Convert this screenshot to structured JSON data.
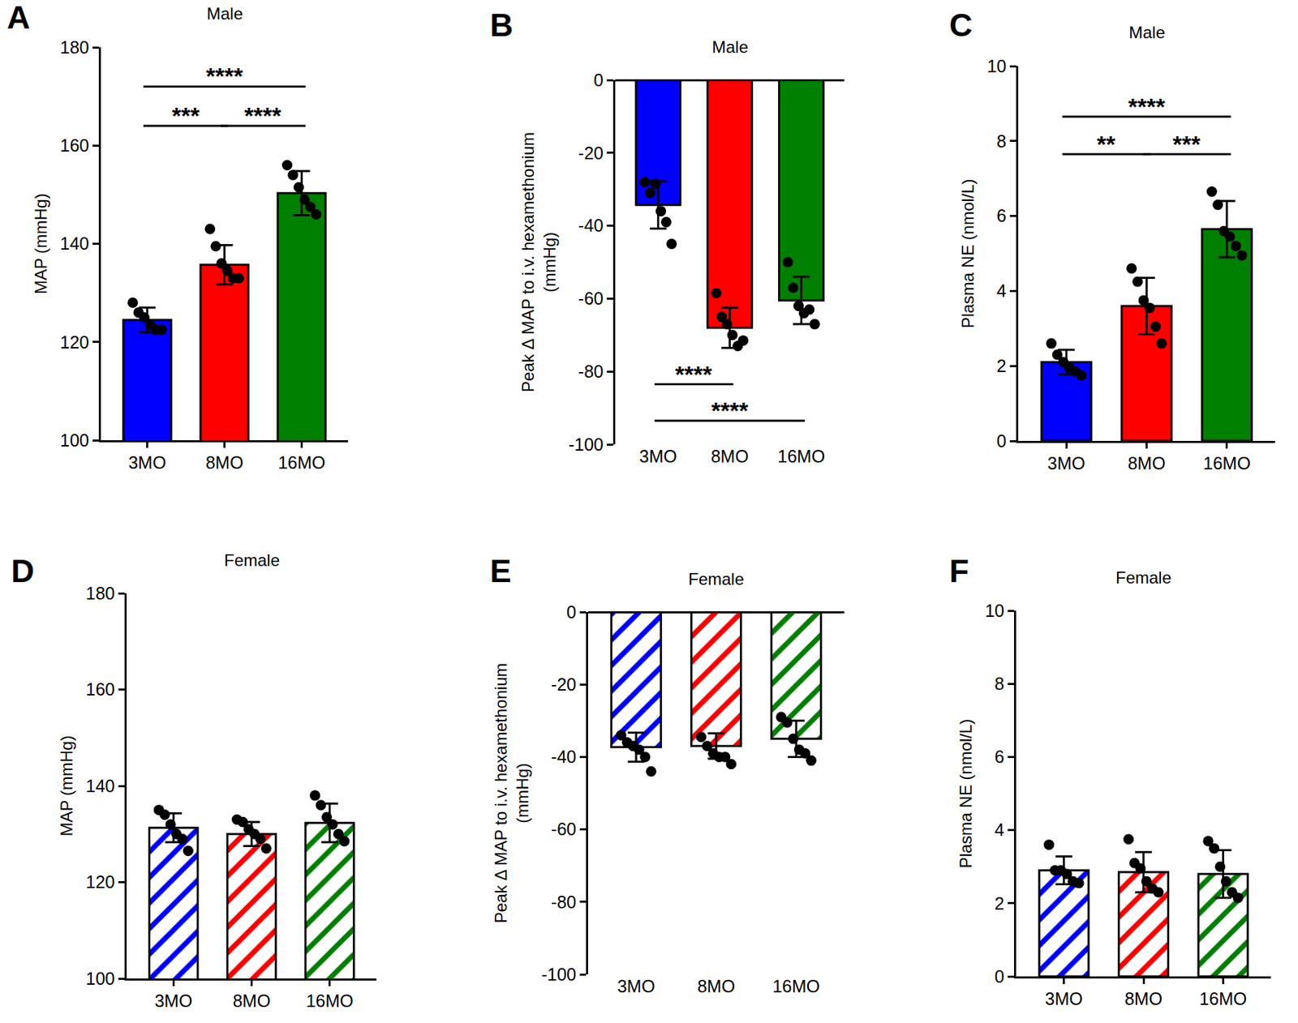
{
  "chart_data": [
    {
      "type": "bar",
      "panel_label": "A",
      "title": "Male",
      "ylabel": "MAP (mmHg)",
      "categories": [
        "3MO",
        "8MO",
        "16MO"
      ],
      "values": [
        124.5,
        135.7,
        150.3
      ],
      "error": [
        2.5,
        4.0,
        4.5
      ],
      "points": [
        [
          128,
          126,
          125,
          123.5,
          122.5,
          122.5
        ],
        [
          143,
          139.5,
          136,
          134.5,
          133,
          133
        ],
        [
          156,
          154,
          151.5,
          149,
          147.5,
          146
        ]
      ],
      "colors": [
        "#0000ff",
        "#ff0000",
        "#008000"
      ],
      "ylim": [
        100,
        180
      ],
      "yticks": [
        100,
        120,
        140,
        160,
        180
      ],
      "grid": false,
      "comparisons": [
        {
          "pair": [
            "3MO",
            "8MO"
          ],
          "label": "***"
        },
        {
          "pair": [
            "8MO",
            "16MO"
          ],
          "label": "****"
        },
        {
          "pair": [
            "3MO",
            "16MO"
          ],
          "label": "****"
        }
      ]
    },
    {
      "type": "bar",
      "panel_label": "B",
      "title": "Male",
      "ylabel": "Peak Δ MAP to i.v. hexamethonium\n(mmHg)",
      "categories": [
        "3MO",
        "8MO",
        "16MO"
      ],
      "values": [
        -34.3,
        -68,
        -60.5
      ],
      "error": [
        6.5,
        5.5,
        6.5
      ],
      "points": [
        [
          -28,
          -31,
          -28.5,
          -36,
          -39,
          -45
        ],
        [
          -58.5,
          -65,
          -67,
          -70,
          -73,
          -71.5
        ],
        [
          -50,
          -57,
          -62,
          -64,
          -63,
          -67
        ]
      ],
      "colors": [
        "#0000ff",
        "#ff0000",
        "#008000"
      ],
      "ylim": [
        -100,
        0
      ],
      "yticks": [
        -100,
        -80,
        -60,
        -40,
        -20,
        0
      ],
      "grid": false,
      "comparisons": [
        {
          "pair": [
            "3MO",
            "8MO"
          ],
          "label": "****"
        },
        {
          "pair": [
            "3MO",
            "16MO"
          ],
          "label": "****"
        }
      ]
    },
    {
      "type": "bar",
      "panel_label": "C",
      "title": "Male",
      "ylabel": "Plasma NE (nmol/L)",
      "categories": [
        "3MO",
        "8MO",
        "16MO"
      ],
      "values": [
        2.1,
        3.6,
        5.65
      ],
      "error": [
        0.33,
        0.75,
        0.75
      ],
      "points": [
        [
          2.6,
          2.3,
          2.1,
          1.95,
          1.85,
          1.75
        ],
        [
          4.6,
          4.25,
          3.75,
          3.55,
          3.05,
          2.6
        ],
        [
          6.65,
          6.3,
          5.6,
          5.45,
          5.2,
          4.95
        ]
      ],
      "colors": [
        "#0000ff",
        "#ff0000",
        "#008000"
      ],
      "ylim": [
        0,
        10
      ],
      "yticks": [
        0,
        2,
        4,
        6,
        8,
        10
      ],
      "grid": false,
      "comparisons": [
        {
          "pair": [
            "3MO",
            "8MO"
          ],
          "label": "**"
        },
        {
          "pair": [
            "8MO",
            "16MO"
          ],
          "label": "***"
        },
        {
          "pair": [
            "3MO",
            "16MO"
          ],
          "label": "****"
        }
      ]
    },
    {
      "type": "bar",
      "panel_label": "D",
      "title": "Female",
      "ylabel": "MAP (mmHg)",
      "categories": [
        "3MO",
        "8MO",
        "16MO"
      ],
      "values": [
        131.3,
        130.0,
        132.3
      ],
      "error": [
        3.0,
        2.5,
        4.0
      ],
      "points": [
        [
          135,
          134,
          132,
          130,
          129,
          126.5
        ],
        [
          133,
          132.5,
          131,
          130,
          129,
          127
        ],
        [
          138,
          136,
          133.5,
          132,
          130,
          128.5
        ]
      ],
      "colors": [
        "#0000ff",
        "#ff0000",
        "#008000"
      ],
      "ylim": [
        100,
        180
      ],
      "yticks": [
        100,
        120,
        140,
        160,
        180
      ],
      "grid": false,
      "comparisons": []
    },
    {
      "type": "bar",
      "panel_label": "E",
      "title": "Female",
      "ylabel": "Peak Δ MAP to i.v. hexamethonium\n(mmHg)",
      "categories": [
        "3MO",
        "8MO",
        "16MO"
      ],
      "values": [
        -37.3,
        -37.0,
        -35.0
      ],
      "error": [
        4.0,
        3.5,
        5.0
      ],
      "points": [
        [
          -34,
          -36,
          -37,
          -38,
          -40,
          -44
        ],
        [
          -34.5,
          -37,
          -39,
          -40,
          -40,
          -42
        ],
        [
          -29,
          -30.5,
          -35,
          -38,
          -39,
          -41
        ]
      ],
      "colors": [
        "#0000ff",
        "#ff0000",
        "#008000"
      ],
      "ylim": [
        -100,
        0
      ],
      "yticks": [
        -100,
        -80,
        -60,
        -40,
        -20,
        0
      ],
      "grid": false,
      "comparisons": []
    },
    {
      "type": "bar",
      "panel_label": "F",
      "title": "Female",
      "ylabel": "Plasma NE (nmol/L)",
      "categories": [
        "3MO",
        "8MO",
        "16MO"
      ],
      "values": [
        2.9,
        2.85,
        2.8
      ],
      "error": [
        0.38,
        0.55,
        0.65
      ],
      "points": [
        [
          3.6,
          2.9,
          2.9,
          2.8,
          2.6,
          2.55
        ],
        [
          3.75,
          3.1,
          2.95,
          2.6,
          2.4,
          2.3
        ],
        [
          3.7,
          3.5,
          3.0,
          2.6,
          2.3,
          2.15
        ]
      ],
      "colors": [
        "#0000ff",
        "#ff0000",
        "#008000"
      ],
      "ylim": [
        0,
        10
      ],
      "yticks": [
        0,
        2,
        4,
        6,
        8,
        10
      ],
      "grid": false,
      "comparisons": []
    }
  ]
}
